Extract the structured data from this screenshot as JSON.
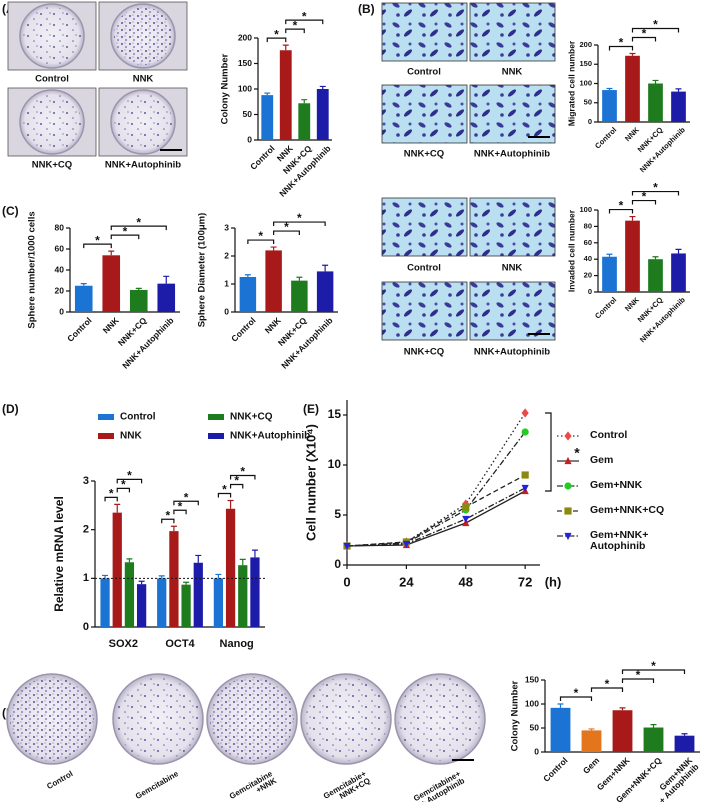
{
  "panels": [
    {
      "label": "(A)",
      "images": [
        "Control",
        "NNK",
        "NNK+CQ",
        "NNK+Autophinib"
      ]
    },
    {
      "label": "(B)",
      "images": [
        "Control",
        "NNK",
        "NNK+CQ",
        "NNK+Autophinib"
      ]
    },
    {
      "label": "(C)",
      "images": [
        "Control",
        "NNK",
        "NNK+CQ",
        "NNK+Autophinib"
      ]
    },
    {
      "label": "(D)"
    },
    {
      "label": "(E)"
    },
    {
      "label": "(F)",
      "images": [
        "Control",
        "Gemcitabine",
        "Gemcitabine\n+NNK",
        "Gemcitabie+\nNNK+CQ",
        "Gemcitabine+\nNNK+ Autophinib"
      ]
    }
  ],
  "chart_data": [
    {
      "type": "bar",
      "y_label": "Colony Number",
      "categories": [
        "Control",
        "NNK",
        "NNK+CQ",
        "NNK+Autophinib"
      ],
      "values": [
        88,
        176,
        72,
        100
      ],
      "errors": [
        4,
        10,
        7,
        5
      ],
      "colors": [
        "#1b74d4",
        "#a81919",
        "#1e7b1e",
        "#1c1ca8"
      ],
      "ylim": [
        0,
        200
      ],
      "yticks": [
        0,
        50,
        100,
        150,
        200
      ],
      "annotations": [
        {
          "text": "*",
          "between": [
            0,
            1
          ]
        },
        {
          "text": "*",
          "between": [
            1,
            2
          ]
        },
        {
          "text": "*",
          "between": [
            1,
            3
          ]
        }
      ]
    },
    {
      "type": "bar",
      "y_label": "Migrated cell number",
      "categories": [
        "Control",
        "NNK",
        "NNK+CQ",
        "NNK+Autophinib"
      ],
      "values": [
        83,
        172,
        100,
        79
      ],
      "errors": [
        4,
        6,
        8,
        7
      ],
      "colors": [
        "#1b74d4",
        "#a81919",
        "#1e7b1e",
        "#1c1ca8"
      ],
      "ylim": [
        0,
        200
      ],
      "yticks": [
        0,
        50,
        100,
        150,
        200
      ],
      "annotations": [
        {
          "text": "*",
          "between": [
            0,
            1
          ]
        },
        {
          "text": "*",
          "between": [
            1,
            2
          ]
        },
        {
          "text": "*",
          "between": [
            1,
            3
          ]
        }
      ]
    },
    {
      "type": "bar",
      "y_label": "Sphere number/1000 cells",
      "categories": [
        "Control",
        "NNK",
        "NNK+CQ",
        "NNK+Autophinib"
      ],
      "values": [
        25,
        54,
        21,
        27
      ],
      "errors": [
        2,
        4,
        1.5,
        7
      ],
      "colors": [
        "#1b74d4",
        "#a81919",
        "#1e7b1e",
        "#1c1ca8"
      ],
      "ylim": [
        0,
        80
      ],
      "yticks": [
        0,
        20,
        40,
        60,
        80
      ],
      "annotations": [
        {
          "text": "*",
          "between": [
            0,
            1
          ]
        },
        {
          "text": "*",
          "between": [
            1,
            2
          ]
        },
        {
          "text": "*",
          "between": [
            1,
            3
          ]
        }
      ]
    },
    {
      "type": "bar",
      "y_label": "Sphere Diameter (100μm)",
      "categories": [
        "Control",
        "NNK",
        "NNK+CQ",
        "NNK+Autophinib"
      ],
      "values": [
        1.25,
        2.2,
        1.12,
        1.45
      ],
      "errors": [
        0.08,
        0.12,
        0.12,
        0.22
      ],
      "colors": [
        "#1b74d4",
        "#a81919",
        "#1e7b1e",
        "#1c1ca8"
      ],
      "ylim": [
        0,
        3
      ],
      "yticks": [
        0,
        1,
        2,
        3
      ],
      "annotations": [
        {
          "text": "*",
          "between": [
            0,
            1
          ]
        },
        {
          "text": "*",
          "between": [
            1,
            2
          ]
        },
        {
          "text": "*",
          "between": [
            1,
            3
          ]
        }
      ]
    },
    {
      "type": "bar",
      "y_label": "Invaded cell number",
      "categories": [
        "Control",
        "NNK",
        "NNK+CQ",
        "NNK+Autophinib"
      ],
      "values": [
        43,
        87,
        40,
        47
      ],
      "errors": [
        3,
        5,
        3,
        5
      ],
      "colors": [
        "#1b74d4",
        "#a81919",
        "#1e7b1e",
        "#1c1ca8"
      ],
      "ylim": [
        0,
        100
      ],
      "yticks": [
        0,
        20,
        40,
        60,
        80,
        100
      ],
      "annotations": [
        {
          "text": "*",
          "between": [
            0,
            1
          ]
        },
        {
          "text": "*",
          "between": [
            1,
            2
          ]
        },
        {
          "text": "*",
          "between": [
            1,
            3
          ]
        }
      ]
    },
    {
      "type": "grouped_bar",
      "y_label": "Relative mRNA level",
      "categories": [
        "SOX2",
        "OCT4",
        "Nanog"
      ],
      "series": [
        {
          "name": "Control",
          "color": "#1b74d4",
          "values": [
            1.0,
            1.0,
            1.0
          ],
          "errors": [
            0.06,
            0.05,
            0.08
          ]
        },
        {
          "name": "NNK",
          "color": "#a81919",
          "values": [
            2.35,
            1.97,
            2.43
          ],
          "errors": [
            0.17,
            0.1,
            0.17
          ]
        },
        {
          "name": "NNK+CQ",
          "color": "#1e7b1e",
          "values": [
            1.33,
            0.87,
            1.27
          ],
          "errors": [
            0.07,
            0.05,
            0.12
          ]
        },
        {
          "name": "NNK+Autophinib",
          "color": "#1c1ca8",
          "values": [
            0.88,
            1.32,
            1.43
          ],
          "errors": [
            0.06,
            0.15,
            0.15
          ]
        }
      ],
      "reference_line": 1,
      "ylim": [
        0,
        3
      ],
      "yticks": [
        0,
        1,
        2,
        3
      ],
      "annotations": [
        {
          "text": "*",
          "category": 0,
          "between": [
            0,
            1
          ]
        },
        {
          "text": "*",
          "category": 0,
          "between": [
            1,
            2
          ]
        },
        {
          "text": "*",
          "category": 0,
          "between": [
            1,
            3
          ]
        },
        {
          "text": "*",
          "category": 1,
          "between": [
            0,
            1
          ]
        },
        {
          "text": "*",
          "category": 1,
          "between": [
            1,
            2
          ]
        },
        {
          "text": "*",
          "category": 1,
          "between": [
            1,
            3
          ]
        },
        {
          "text": "*",
          "category": 2,
          "between": [
            0,
            1
          ]
        },
        {
          "text": "*",
          "category": 2,
          "between": [
            1,
            2
          ]
        },
        {
          "text": "*",
          "category": 2,
          "between": [
            1,
            3
          ]
        }
      ]
    },
    {
      "type": "line",
      "y_label": "Cell number (X10⁴)",
      "x_label": "(h)",
      "x": [
        0,
        24,
        48,
        72
      ],
      "xlim": [
        0,
        78
      ],
      "xticks": [
        0,
        24,
        48,
        72
      ],
      "ylim": [
        0,
        16.5
      ],
      "yticks": [
        0,
        5,
        10,
        15
      ],
      "series": [
        {
          "name": "Control",
          "color": "#e84a4a",
          "marker": "diamond",
          "dash": "dotted",
          "values": [
            1.9,
            2.3,
            6.1,
            15.2
          ]
        },
        {
          "name": "Gem",
          "color": "#c81e1e",
          "marker": "triangle",
          "dash": "solid",
          "values": [
            1.9,
            2.0,
            4.2,
            7.4
          ]
        },
        {
          "name": "Gem+NNK",
          "color": "#22cc22",
          "marker": "circle",
          "dash": "dashdot",
          "values": [
            1.9,
            2.2,
            5.5,
            13.3
          ]
        },
        {
          "name": "Gem+NNK+CQ",
          "color": "#8a8a10",
          "marker": "square",
          "dash": "dashed",
          "values": [
            1.9,
            2.3,
            5.8,
            9.0
          ]
        },
        {
          "name": "Gem+NNK+\nAutophinib",
          "color": "#2222dd",
          "marker": "triangle-down",
          "dash": "dashdot",
          "values": [
            1.9,
            2.1,
            4.6,
            7.7
          ]
        }
      ],
      "annotation": "*"
    },
    {
      "type": "bar",
      "y_label": "Colony Number",
      "categories": [
        "Control",
        "Gem",
        "Gem+NNK",
        "Gem+NNK+CQ",
        "Gem+NNK\n+ Autophinib"
      ],
      "values": [
        92,
        45,
        87,
        51,
        34
      ],
      "errors": [
        8,
        3,
        5,
        6,
        4
      ],
      "colors": [
        "#1b74d4",
        "#e3761c",
        "#a81919",
        "#1e7b1e",
        "#1c1ca8"
      ],
      "ylim": [
        0,
        150
      ],
      "yticks": [
        0,
        50,
        100,
        150
      ],
      "annotations": [
        {
          "text": "*",
          "between": [
            0,
            1
          ]
        },
        {
          "text": "*",
          "between": [
            1,
            2
          ]
        },
        {
          "text": "*",
          "between": [
            2,
            3
          ]
        },
        {
          "text": "*",
          "between": [
            2,
            4
          ]
        }
      ]
    }
  ]
}
